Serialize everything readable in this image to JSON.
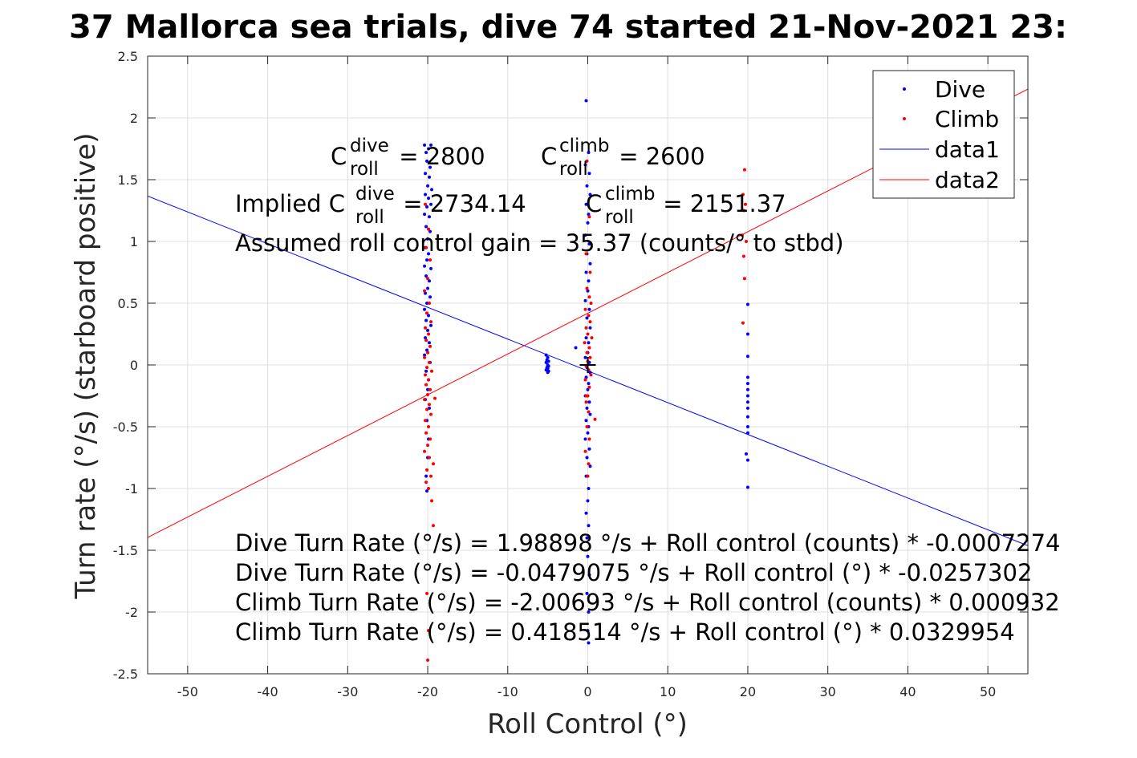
{
  "chart_data": {
    "type": "scatter",
    "title": "37 Mallorca sea trials, dive 74 started 21-Nov-2021 23:",
    "xlabel": "Roll Control (°)",
    "ylabel": "Turn rate (°/s) (starboard positive)",
    "xlim": [
      -55,
      55
    ],
    "ylim": [
      -2.5,
      2.5
    ],
    "xticks": [
      -50,
      -40,
      -30,
      -20,
      -10,
      0,
      10,
      20,
      30,
      40,
      50
    ],
    "yticks": [
      -2.5,
      -2,
      -1.5,
      -1,
      -0.5,
      0,
      0.5,
      1,
      1.5,
      2,
      2.5
    ],
    "grid": true,
    "legend_position": "top-right",
    "series": [
      {
        "name": "Dive",
        "kind": "points",
        "color": "#0000ff",
        "points": [
          [
            -20.4,
            1.78
          ],
          [
            -20.2,
            1.72
          ],
          [
            -19.9,
            1.75
          ],
          [
            -19.6,
            1.78
          ],
          [
            -20.1,
            1.65
          ],
          [
            -19.7,
            1.6
          ],
          [
            -20.3,
            1.55
          ],
          [
            -19.8,
            1.52
          ],
          [
            -20.0,
            1.45
          ],
          [
            -19.5,
            1.42
          ],
          [
            -20.3,
            1.38
          ],
          [
            -19.9,
            1.35
          ],
          [
            -20.1,
            1.28
          ],
          [
            -19.6,
            1.3
          ],
          [
            -20.4,
            1.22
          ],
          [
            -19.8,
            1.2
          ],
          [
            -20.2,
            1.12
          ],
          [
            -19.7,
            1.08
          ],
          [
            -20.0,
            1.02
          ],
          [
            -20.3,
            0.95
          ],
          [
            -19.9,
            0.9
          ],
          [
            -20.1,
            0.85
          ],
          [
            -20.4,
            0.8
          ],
          [
            -19.6,
            0.78
          ],
          [
            -20.2,
            0.72
          ],
          [
            -19.8,
            0.68
          ],
          [
            -20.0,
            0.62
          ],
          [
            -20.3,
            0.58
          ],
          [
            -19.7,
            0.55
          ],
          [
            -20.1,
            0.5
          ],
          [
            -20.4,
            0.45
          ],
          [
            -19.9,
            0.4
          ],
          [
            -20.2,
            0.36
          ],
          [
            -19.6,
            0.32
          ],
          [
            -20.0,
            0.28
          ],
          [
            -20.3,
            0.22
          ],
          [
            -19.8,
            0.18
          ],
          [
            -20.1,
            0.12
          ],
          [
            -20.4,
            0.08
          ],
          [
            -19.7,
            0.02
          ],
          [
            -20.2,
            -0.05
          ],
          [
            -19.9,
            -0.12
          ],
          [
            -20.0,
            -0.2
          ],
          [
            -20.3,
            -0.28
          ],
          [
            -19.8,
            -0.35
          ],
          [
            -20.1,
            -0.45
          ],
          [
            -19.9,
            -0.6
          ],
          [
            -20.0,
            -0.75
          ],
          [
            -20.2,
            -0.9
          ],
          [
            -20.1,
            -1.02
          ],
          [
            -5.2,
            0.08
          ],
          [
            -5.0,
            0.06
          ],
          [
            -5.1,
            0.04
          ],
          [
            -4.9,
            0.03
          ],
          [
            -5.2,
            0.02
          ],
          [
            -5.0,
            0.0
          ],
          [
            -4.9,
            -0.01
          ],
          [
            -5.1,
            -0.02
          ],
          [
            -5.0,
            -0.03
          ],
          [
            -5.2,
            -0.04
          ],
          [
            -4.9,
            -0.05
          ],
          [
            -5.0,
            -0.06
          ],
          [
            -0.2,
            2.14
          ],
          [
            0.1,
            1.72
          ],
          [
            -0.3,
            1.62
          ],
          [
            0.2,
            1.55
          ],
          [
            -0.1,
            1.45
          ],
          [
            0.3,
            1.38
          ],
          [
            -0.2,
            1.3
          ],
          [
            0.1,
            1.22
          ],
          [
            0.0,
            1.15
          ],
          [
            -0.3,
            1.05
          ],
          [
            0.2,
            0.98
          ],
          [
            -0.1,
            0.9
          ],
          [
            0.3,
            0.82
          ],
          [
            -0.2,
            0.75
          ],
          [
            0.1,
            0.68
          ],
          [
            0.0,
            0.6
          ],
          [
            -0.3,
            0.52
          ],
          [
            0.2,
            0.45
          ],
          [
            -0.1,
            0.38
          ],
          [
            0.3,
            0.3
          ],
          [
            -0.2,
            0.22
          ],
          [
            0.1,
            0.18
          ],
          [
            -1.5,
            0.14
          ],
          [
            0.0,
            0.1
          ],
          [
            -0.3,
            0.06
          ],
          [
            0.2,
            0.02
          ],
          [
            -0.1,
            -0.02
          ],
          [
            0.3,
            -0.06
          ],
          [
            -0.2,
            -0.1
          ],
          [
            0.1,
            -0.15
          ],
          [
            0.0,
            -0.2
          ],
          [
            -0.3,
            -0.25
          ],
          [
            0.2,
            -0.3
          ],
          [
            -0.1,
            -0.35
          ],
          [
            0.3,
            -0.4
          ],
          [
            -0.2,
            -0.45
          ],
          [
            0.1,
            -0.5
          ],
          [
            0.0,
            -0.55
          ],
          [
            -0.3,
            -0.6
          ],
          [
            0.2,
            -0.68
          ],
          [
            -0.1,
            -0.75
          ],
          [
            0.3,
            -0.82
          ],
          [
            -0.2,
            -0.9
          ],
          [
            0.1,
            -1.0
          ],
          [
            0.0,
            -1.1
          ],
          [
            -0.2,
            -1.2
          ],
          [
            0.1,
            -1.3
          ],
          [
            -0.1,
            -1.4
          ],
          [
            0.0,
            -1.55
          ],
          [
            0.2,
            -1.7
          ],
          [
            -0.1,
            -1.85
          ],
          [
            0.1,
            -2.0
          ],
          [
            0.0,
            -2.15
          ],
          [
            0.1,
            -2.25
          ],
          [
            20.0,
            0.49
          ],
          [
            20.0,
            0.25
          ],
          [
            20.0,
            0.07
          ],
          [
            20.0,
            -0.1
          ],
          [
            20.0,
            -0.15
          ],
          [
            20.0,
            -0.2
          ],
          [
            20.0,
            -0.25
          ],
          [
            20.0,
            -0.3
          ],
          [
            20.0,
            -0.35
          ],
          [
            20.0,
            -0.42
          ],
          [
            20.0,
            -0.5
          ],
          [
            20.0,
            -0.55
          ],
          [
            19.8,
            -0.72
          ],
          [
            20.0,
            -0.77
          ],
          [
            20.0,
            -0.99
          ]
        ]
      },
      {
        "name": "Climb",
        "kind": "points",
        "color": "#ff0000",
        "points": [
          [
            -20.3,
            1.3
          ],
          [
            -19.9,
            1.1
          ],
          [
            -20.2,
            0.95
          ],
          [
            -19.7,
            0.85
          ],
          [
            -20.0,
            0.7
          ],
          [
            -20.4,
            0.6
          ],
          [
            -19.8,
            0.5
          ],
          [
            -20.1,
            0.42
          ],
          [
            -19.6,
            0.35
          ],
          [
            -20.3,
            0.3
          ],
          [
            -19.9,
            0.25
          ],
          [
            -20.2,
            0.2
          ],
          [
            -19.7,
            0.15
          ],
          [
            -20.0,
            0.1
          ],
          [
            -20.4,
            0.06
          ],
          [
            -19.8,
            0.02
          ],
          [
            -20.1,
            -0.02
          ],
          [
            -19.5,
            -0.05
          ],
          [
            -20.3,
            -0.08
          ],
          [
            -19.9,
            -0.12
          ],
          [
            -20.2,
            -0.16
          ],
          [
            -19.7,
            -0.2
          ],
          [
            -20.0,
            -0.24
          ],
          [
            -20.4,
            -0.28
          ],
          [
            -19.1,
            -0.27
          ],
          [
            -19.8,
            -0.32
          ],
          [
            -20.1,
            -0.36
          ],
          [
            -19.6,
            -0.4
          ],
          [
            -20.3,
            -0.45
          ],
          [
            -19.9,
            -0.5
          ],
          [
            -20.2,
            -0.55
          ],
          [
            -19.7,
            -0.6
          ],
          [
            -20.0,
            -0.65
          ],
          [
            -20.4,
            -0.7
          ],
          [
            -19.8,
            -0.75
          ],
          [
            -19.3,
            -0.8
          ],
          [
            -20.1,
            -0.85
          ],
          [
            -19.6,
            -0.9
          ],
          [
            -20.2,
            -0.95
          ],
          [
            -19.9,
            -1.0
          ],
          [
            -19.5,
            -1.1
          ],
          [
            -19.3,
            -1.3
          ],
          [
            -20.1,
            -1.85
          ],
          [
            -19.9,
            -2.15
          ],
          [
            -20.0,
            -2.39
          ],
          [
            -0.1,
            1.65
          ],
          [
            0.2,
            1.2
          ],
          [
            -0.2,
            0.9
          ],
          [
            0.3,
            0.75
          ],
          [
            -0.1,
            0.62
          ],
          [
            0.2,
            0.55
          ],
          [
            0.4,
            0.5
          ],
          [
            -0.3,
            0.45
          ],
          [
            0.1,
            0.4
          ],
          [
            0.3,
            0.35
          ],
          [
            -0.2,
            0.3
          ],
          [
            0.0,
            0.25
          ],
          [
            0.5,
            0.22
          ],
          [
            -0.4,
            0.18
          ],
          [
            0.2,
            0.14
          ],
          [
            -0.1,
            0.1
          ],
          [
            0.3,
            0.06
          ],
          [
            0.0,
            0.03
          ],
          [
            -0.2,
            -0.01
          ],
          [
            0.1,
            -0.04
          ],
          [
            0.4,
            -0.08
          ],
          [
            -0.3,
            -0.12
          ],
          [
            0.2,
            -0.18
          ],
          [
            0.0,
            -0.25
          ],
          [
            -0.2,
            -0.3
          ],
          [
            0.1,
            -0.38
          ],
          [
            0.9,
            -0.44
          ],
          [
            -0.1,
            -0.5
          ],
          [
            0.2,
            -0.6
          ],
          [
            -0.3,
            -0.7
          ],
          [
            0.1,
            -0.8
          ],
          [
            0.0,
            -0.9
          ],
          [
            -0.2,
            -0.25
          ],
          [
            19.6,
            1.58
          ],
          [
            19.4,
            1.38
          ],
          [
            19.7,
            1.3
          ],
          [
            19.5,
            1.25
          ],
          [
            19.3,
            1.05
          ],
          [
            19.8,
            1.0
          ],
          [
            19.5,
            0.88
          ],
          [
            19.6,
            0.7
          ],
          [
            19.4,
            0.34
          ]
        ]
      },
      {
        "name": "data1",
        "kind": "line",
        "color": "#0000ff",
        "points": [
          [
            -55,
            1.3673
          ],
          [
            55,
            -1.4631
          ]
        ]
      },
      {
        "name": "data2",
        "kind": "line",
        "color": "#ff0000",
        "points": [
          [
            -55,
            -1.3962
          ],
          [
            55,
            2.2333
          ]
        ]
      },
      {
        "name": "",
        "kind": "marker",
        "color": "#000000",
        "points": [
          [
            0,
            0
          ]
        ]
      }
    ],
    "annotations": {
      "c_dive": {
        "base": "C",
        "sup": "dive",
        "sub": "roll",
        "rest": " = 2800"
      },
      "c_climb": {
        "base": "C",
        "sup": "climb",
        "sub": "roll",
        "rest": " = 2600"
      },
      "implied_dive": {
        "prefix": "Implied C",
        "sup": "dive",
        "sub": "roll",
        "rest": " = 2734.14"
      },
      "implied_climb": {
        "prefix": "C",
        "sup": "climb",
        "sub": "roll",
        "rest": " = 2151.37"
      },
      "gain": "Assumed roll control gain = 35.37 (counts/° to stbd)",
      "eq1": "Dive Turn Rate (°/s) = 1.98898 °/s + Roll control (counts) * -0.0007274",
      "eq2": "Dive Turn Rate (°/s) = -0.0479075 °/s + Roll control (°) * -0.0257302",
      "eq3": "Climb Turn Rate (°/s) = -2.00693 °/s + Roll control (counts) * 0.000932",
      "eq4": "Climb Turn Rate (°/s) = 0.418514 °/s + Roll control (°) * 0.0329954"
    }
  }
}
